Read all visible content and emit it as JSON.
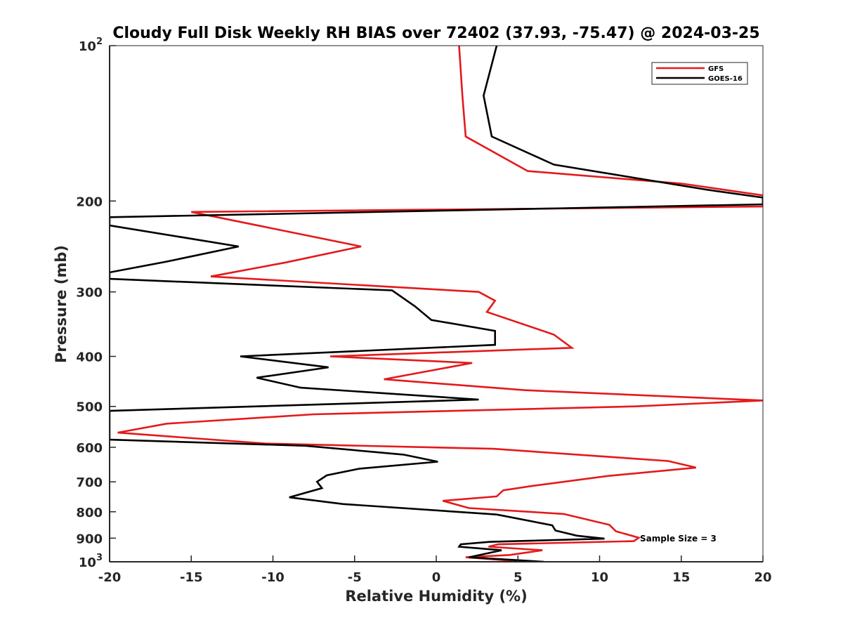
{
  "chart_data": {
    "type": "line",
    "title": "Cloudy Full Disk Weekly RH BIAS over 72402 (37.93, -75.47) @ 2024-03-25",
    "xlabel": "Relative Humidity (%)",
    "ylabel": "Pressure (mb)",
    "xlim": [
      -20,
      20
    ],
    "ylim": [
      100,
      1000
    ],
    "y_scale": "log",
    "y_reversed": true,
    "x_ticks": [
      -20,
      -15,
      -10,
      -5,
      0,
      5,
      10,
      15,
      20
    ],
    "x_tick_labels": [
      "-20",
      "-15",
      "-10",
      "-5",
      "0",
      "5",
      "10",
      "15",
      "20"
    ],
    "y_ticks": [
      100,
      200,
      300,
      400,
      500,
      600,
      700,
      800,
      900,
      1000
    ],
    "y_tick_labels": [
      {
        "base": "10",
        "exp": "2"
      },
      {
        "base": "200",
        "exp": ""
      },
      {
        "base": "300",
        "exp": ""
      },
      {
        "base": "400",
        "exp": ""
      },
      {
        "base": "500",
        "exp": ""
      },
      {
        "base": "600",
        "exp": ""
      },
      {
        "base": "700",
        "exp": ""
      },
      {
        "base": "800",
        "exp": ""
      },
      {
        "base": "900",
        "exp": ""
      },
      {
        "base": "10",
        "exp": "3"
      }
    ],
    "grid": false,
    "legend_position": "top-right",
    "annotation": "Sample Size = 3",
    "series": [
      {
        "name": "GFS",
        "color": "#e41a1c",
        "points": [
          [
            1.4,
            100
          ],
          [
            1.6,
            125
          ],
          [
            1.8,
            150
          ],
          [
            5.6,
            175
          ],
          [
            15.0,
            185
          ],
          [
            20,
            195
          ],
          [
            20,
            205
          ],
          [
            -15.0,
            210
          ],
          [
            -4.6,
            245
          ],
          [
            -9.2,
            263
          ],
          [
            -13.8,
            280
          ],
          [
            2.6,
            300
          ],
          [
            3.6,
            312
          ],
          [
            3.1,
            328
          ],
          [
            7.2,
            363
          ],
          [
            8.3,
            385
          ],
          [
            -6.5,
            400
          ],
          [
            2.2,
            412
          ],
          [
            -3.2,
            443
          ],
          [
            5.4,
            465
          ],
          [
            20,
            487
          ],
          [
            12.2,
            500
          ],
          [
            -7.5,
            518
          ],
          [
            -16.5,
            540
          ],
          [
            -19.5,
            562
          ],
          [
            -10.5,
            590
          ],
          [
            3.5,
            604
          ],
          [
            14.2,
            638
          ],
          [
            15.9,
            657
          ],
          [
            10.5,
            682
          ],
          [
            6.0,
            712
          ],
          [
            4.1,
            727
          ],
          [
            3.7,
            747
          ],
          [
            0.4,
            762
          ],
          [
            2.0,
            787
          ],
          [
            7.8,
            808
          ],
          [
            10.6,
            848
          ],
          [
            11.0,
            873
          ],
          [
            12.4,
            898
          ],
          [
            12.1,
            912
          ],
          [
            3.8,
            925
          ],
          [
            3.2,
            935
          ],
          [
            6.5,
            950
          ],
          [
            4.5,
            970
          ],
          [
            1.8,
            980
          ],
          [
            5.5,
            1000
          ]
        ]
      },
      {
        "name": "GOES-16",
        "color": "#000000",
        "points": [
          [
            3.7,
            100
          ],
          [
            2.9,
            125
          ],
          [
            3.4,
            150
          ],
          [
            7.2,
            170
          ],
          [
            16.5,
            190
          ],
          [
            20,
            197
          ],
          [
            20,
            203
          ],
          [
            -20,
            215
          ],
          [
            -20,
            223
          ],
          [
            -12.1,
            245
          ],
          [
            -16.5,
            262
          ],
          [
            -20,
            275
          ],
          [
            -20,
            283
          ],
          [
            -2.7,
            298
          ],
          [
            -1.3,
            320
          ],
          [
            -0.3,
            340
          ],
          [
            3.6,
            357
          ],
          [
            3.6,
            380
          ],
          [
            -12.0,
            400
          ],
          [
            -6.6,
            420
          ],
          [
            -11.0,
            440
          ],
          [
            -8.3,
            460
          ],
          [
            2.6,
            485
          ],
          [
            -20,
            510
          ],
          [
            -20,
            580
          ],
          [
            -8.0,
            596
          ],
          [
            -2.0,
            620
          ],
          [
            0.1,
            640
          ],
          [
            -4.7,
            660
          ],
          [
            -6.7,
            680
          ],
          [
            -7.3,
            700
          ],
          [
            -7.0,
            720
          ],
          [
            -9.0,
            750
          ],
          [
            -5.7,
            773
          ],
          [
            3.7,
            810
          ],
          [
            7.1,
            850
          ],
          [
            7.3,
            870
          ],
          [
            8.6,
            890
          ],
          [
            10.3,
            902
          ],
          [
            3.3,
            915
          ],
          [
            1.5,
            925
          ],
          [
            1.4,
            935
          ],
          [
            4.0,
            950
          ],
          [
            2.0,
            980
          ],
          [
            6.6,
            1000
          ]
        ]
      }
    ]
  },
  "colors": {
    "background": "#ffffff",
    "axis": "#262626",
    "gfs": "#e41a1c",
    "goes": "#000000"
  }
}
